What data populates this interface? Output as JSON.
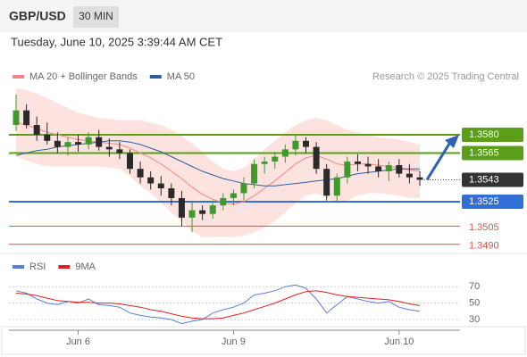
{
  "header": {
    "symbol": "GBP/USD",
    "timeframe": "30 MIN",
    "timestamp": "Tuesday, June 10, 2025 3:39:44 AM CET"
  },
  "chart_data": [
    {
      "type": "candlestick",
      "copyright": "Research © 2025 Trading Central",
      "categories": [
        null,
        null,
        null,
        null,
        null,
        null,
        "Jun 6",
        null,
        null,
        null,
        null,
        null,
        null,
        null,
        null,
        null,
        null,
        null,
        null,
        null,
        null,
        "Jun 9",
        null,
        null,
        null,
        null,
        null,
        null,
        null,
        null,
        null,
        null,
        null,
        null,
        null,
        null,
        null,
        "Jun 10",
        null,
        null
      ],
      "open": [
        1.3588,
        1.36,
        1.3588,
        1.358,
        1.3575,
        1.357,
        1.3574,
        1.3572,
        1.3578,
        1.357,
        1.3568,
        1.3565,
        1.3552,
        1.3545,
        1.354,
        1.3536,
        1.3528,
        1.3512,
        1.3518,
        1.3515,
        1.3522,
        1.3528,
        1.3532,
        1.354,
        1.3556,
        1.3558,
        1.3562,
        1.3568,
        1.3575,
        1.357,
        1.3552,
        1.353,
        1.3545,
        1.3558,
        1.3556,
        1.3554,
        1.355,
        1.3555,
        1.3548,
        1.3545
      ],
      "high": [
        1.3613,
        1.3605,
        1.3595,
        1.359,
        1.3582,
        1.3578,
        1.358,
        1.3582,
        1.3584,
        1.3577,
        1.3574,
        1.3568,
        1.3558,
        1.355,
        1.3546,
        1.354,
        1.3534,
        1.3525,
        1.3522,
        1.3526,
        1.3532,
        1.3535,
        1.3545,
        1.356,
        1.3562,
        1.3566,
        1.3572,
        1.358,
        1.3578,
        1.3574,
        1.3556,
        1.3548,
        1.3562,
        1.3564,
        1.3562,
        1.356,
        1.3558,
        1.356,
        1.3556,
        1.355
      ],
      "low": [
        1.3583,
        1.3585,
        1.3575,
        1.3572,
        1.3565,
        1.3563,
        1.3566,
        1.3568,
        1.3567,
        1.3562,
        1.356,
        1.3548,
        1.354,
        1.3535,
        1.353,
        1.3522,
        1.3505,
        1.35,
        1.351,
        1.3511,
        1.3518,
        1.3522,
        1.3526,
        1.3536,
        1.3548,
        1.3552,
        1.3557,
        1.3563,
        1.3565,
        1.3548,
        1.3526,
        1.3524,
        1.354,
        1.355,
        1.3548,
        1.3545,
        1.3542,
        1.3545,
        1.354,
        1.3538
      ],
      "close": [
        1.36,
        1.3588,
        1.358,
        1.3575,
        1.357,
        1.3574,
        1.3572,
        1.3578,
        1.357,
        1.3568,
        1.3565,
        1.3552,
        1.3545,
        1.354,
        1.3536,
        1.3528,
        1.3512,
        1.3518,
        1.3515,
        1.3522,
        1.3528,
        1.3532,
        1.354,
        1.3556,
        1.3558,
        1.3562,
        1.3568,
        1.3575,
        1.357,
        1.3552,
        1.353,
        1.3545,
        1.3558,
        1.3556,
        1.3554,
        1.355,
        1.3555,
        1.3548,
        1.3545,
        1.3543
      ],
      "up_color": "#3f9a2c",
      "down_color": "#2a2a2a",
      "series": [
        {
          "name": "MA 20 + Bollinger Bands",
          "color": "#f08a80",
          "band_color": "#fde3e0",
          "values": [
            1.359,
            1.3588,
            1.3585,
            1.3582,
            1.358,
            1.3578,
            1.3576,
            1.3575,
            1.3574,
            1.3573,
            1.3572,
            1.3569,
            1.3565,
            1.3561,
            1.3556,
            1.355,
            1.3544,
            1.3537,
            1.3531,
            1.3527,
            1.3524,
            1.3523,
            1.3525,
            1.353,
            1.3536,
            1.3542,
            1.3549,
            1.3556,
            1.3561,
            1.3563,
            1.356,
            1.3556,
            1.3555,
            1.3556,
            1.3556,
            1.3555,
            1.3554,
            1.3553,
            1.3551,
            1.355
          ],
          "upper": [
            1.3618,
            1.3617,
            1.3614,
            1.361,
            1.3606,
            1.3602,
            1.3598,
            1.3596,
            1.3594,
            1.3593,
            1.3592,
            1.3592,
            1.3592,
            1.359,
            1.3588,
            1.3584,
            1.3579,
            1.3573,
            1.3566,
            1.3558,
            1.3552,
            1.355,
            1.3553,
            1.356,
            1.3568,
            1.3575,
            1.3582,
            1.3588,
            1.3592,
            1.3594,
            1.3592,
            1.3588,
            1.3584,
            1.3582,
            1.358,
            1.3578,
            1.3577,
            1.3576,
            1.3574,
            1.3572
          ],
          "lower": [
            1.3562,
            1.3559,
            1.3556,
            1.3554,
            1.3554,
            1.3554,
            1.3554,
            1.3554,
            1.3554,
            1.3553,
            1.3552,
            1.3546,
            1.3538,
            1.3532,
            1.3524,
            1.3516,
            1.3509,
            1.3501,
            1.3496,
            1.3496,
            1.3496,
            1.3496,
            1.3497,
            1.35,
            1.3504,
            1.3509,
            1.3516,
            1.3524,
            1.353,
            1.3532,
            1.3528,
            1.3524,
            1.3526,
            1.353,
            1.3532,
            1.3532,
            1.3531,
            1.353,
            1.3528,
            1.3528
          ]
        },
        {
          "name": "MA 50",
          "color": "#2f5d9e",
          "values": [
            1.3563,
            1.3565,
            1.3567,
            1.3568,
            1.357,
            1.3571,
            1.3572,
            1.3573,
            1.3574,
            1.3575,
            1.3575,
            1.3574,
            1.3572,
            1.3569,
            1.3566,
            1.3562,
            1.3558,
            1.3554,
            1.355,
            1.3547,
            1.3544,
            1.3542,
            1.354,
            1.3539,
            1.3538,
            1.3538,
            1.3539,
            1.354,
            1.3541,
            1.3542,
            1.3543,
            1.3544,
            1.3546,
            1.3548,
            1.3549,
            1.355,
            1.3551,
            1.3552,
            1.3552,
            1.3552
          ]
        }
      ],
      "levels": [
        {
          "value": 1.358,
          "label": "1.3580",
          "color": "#5a9e1a",
          "label_style": "box"
        },
        {
          "value": 1.3565,
          "label": "1.3565",
          "color": "#5a9e1a",
          "label_style": "box"
        },
        {
          "value": 1.3525,
          "label": "1.3525",
          "color": "#2f6fd6",
          "label_style": "box"
        },
        {
          "value": 1.3505,
          "label": "1.3505",
          "color": "#e35050",
          "label_style": "text"
        },
        {
          "value": 1.349,
          "label": "1.3490",
          "color": "#e35050",
          "label_style": "text"
        }
      ],
      "last_price": 1.3543,
      "last_price_color": "#333333",
      "ylim": [
        1.3484,
        1.3621
      ]
    },
    {
      "type": "line",
      "series": [
        {
          "name": "RSI",
          "color": "#5a7fd6",
          "values": [
            65,
            62,
            55,
            50,
            48,
            52,
            50,
            55,
            48,
            47,
            45,
            38,
            35,
            33,
            32,
            30,
            25,
            28,
            30,
            38,
            42,
            45,
            50,
            60,
            62,
            65,
            70,
            72,
            68,
            55,
            38,
            48,
            58,
            55,
            52,
            50,
            52,
            45,
            42,
            40
          ]
        },
        {
          "name": "9MA",
          "color": "#e02020",
          "values": [
            62,
            61,
            59,
            56,
            53,
            52,
            51,
            51,
            50,
            50,
            49,
            47,
            45,
            42,
            40,
            37,
            34,
            32,
            31,
            31,
            32,
            35,
            38,
            42,
            46,
            50,
            55,
            60,
            64,
            65,
            63,
            60,
            58,
            57,
            56,
            55,
            54,
            52,
            49,
            47
          ]
        }
      ],
      "ylim": [
        17,
        106
      ],
      "yticks": [
        70,
        50,
        30
      ]
    }
  ]
}
